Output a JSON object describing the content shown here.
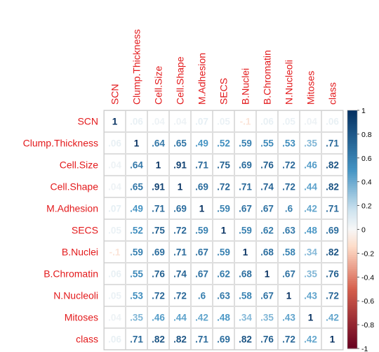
{
  "chart_data": {
    "type": "heatmap",
    "variables": [
      "SCN",
      "Clump.Thickness",
      "Cell.Size",
      "Cell.Shape",
      "M.Adhesion",
      "SECS",
      "B.Nuclei",
      "B.Chromatin",
      "N.Nucleoli",
      "Mitoses",
      "class"
    ],
    "matrix": [
      [
        1,
        0.06,
        0.04,
        0.04,
        0.07,
        0.05,
        -0.1,
        0.06,
        0.05,
        0.04,
        0.06
      ],
      [
        0.06,
        1,
        0.64,
        0.65,
        0.49,
        0.52,
        0.59,
        0.55,
        0.53,
        0.35,
        0.71
      ],
      [
        0.04,
        0.64,
        1,
        0.91,
        0.71,
        0.75,
        0.69,
        0.76,
        0.72,
        0.46,
        0.82
      ],
      [
        0.04,
        0.65,
        0.91,
        1,
        0.69,
        0.72,
        0.71,
        0.74,
        0.72,
        0.44,
        0.82
      ],
      [
        0.07,
        0.49,
        0.71,
        0.69,
        1,
        0.59,
        0.67,
        0.67,
        0.6,
        0.42,
        0.71
      ],
      [
        0.05,
        0.52,
        0.75,
        0.72,
        0.59,
        1,
        0.59,
        0.62,
        0.63,
        0.48,
        0.69
      ],
      [
        -0.1,
        0.59,
        0.69,
        0.71,
        0.67,
        0.59,
        1,
        0.68,
        0.58,
        0.34,
        0.82
      ],
      [
        0.06,
        0.55,
        0.76,
        0.74,
        0.67,
        0.62,
        0.68,
        1,
        0.67,
        0.35,
        0.76
      ],
      [
        0.05,
        0.53,
        0.72,
        0.72,
        0.6,
        0.63,
        0.58,
        0.67,
        1,
        0.43,
        0.72
      ],
      [
        0.04,
        0.35,
        0.46,
        0.44,
        0.42,
        0.48,
        0.34,
        0.35,
        0.43,
        1,
        0.42
      ],
      [
        0.06,
        0.71,
        0.82,
        0.82,
        0.71,
        0.69,
        0.82,
        0.76,
        0.72,
        0.42,
        1
      ]
    ],
    "colorbar": {
      "range": [
        -1,
        1
      ],
      "ticks": [
        "1",
        "0.8",
        "0.6",
        "0.4",
        "0.2",
        "0",
        "-0.2",
        "-0.4",
        "-0.6",
        "-0.8",
        "-1"
      ]
    },
    "label_color": "#e31a1c",
    "grid": true
  },
  "colors": {
    "positive_max": "#053061",
    "positive_mid": "#4393c3",
    "positive_low": "#d1e5f0",
    "neutral": "#f7f7f7",
    "negative_low": "#fddbc7",
    "negative_mid": "#d6604d",
    "negative_max": "#67001f",
    "grid": "#c8c8c8"
  }
}
